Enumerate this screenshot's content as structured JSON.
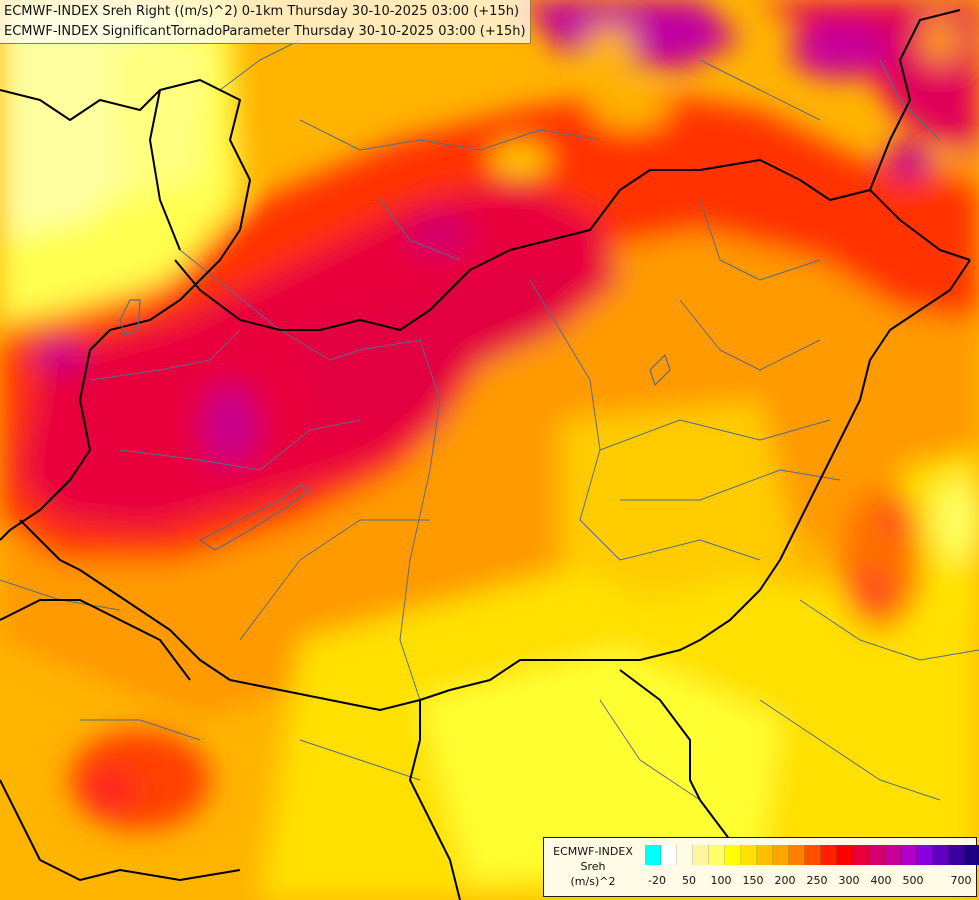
{
  "header": {
    "line1": "ECMWF-INDEX Sreh Right ((m/s)^2) 0-1km Thursday 30-10-2025 03:00 (+15h)",
    "line2": "ECMWF-INDEX SignificantTornadoParameter Thursday 30-10-2025 03:00 (+15h)"
  },
  "legend": {
    "source": "ECMWF-INDEX",
    "variable": "Sreh",
    "unit": "(m/s)^2",
    "colors": [
      "#00ffff",
      "#ffffff",
      "#fffbe0",
      "#fff5a0",
      "#ffff66",
      "#ffff00",
      "#ffe000",
      "#ffc000",
      "#ffa500",
      "#ff8000",
      "#ff5000",
      "#ff2000",
      "#ff0000",
      "#e8003c",
      "#d4006e",
      "#c8009a",
      "#b000c8",
      "#8800e0",
      "#6000c0",
      "#3c00a0",
      "#1a0080",
      "#00006a"
    ],
    "ticks": [
      "-20",
      "50",
      "100",
      "150",
      "200",
      "250",
      "300",
      "400",
      "500",
      "700"
    ]
  },
  "map": {
    "colors": {
      "yellow_pale": "#ffff80",
      "yellow": "#ffee00",
      "gold": "#ffc800",
      "orange": "#ffa500",
      "orange_dark": "#ff7a00",
      "red_orange": "#ff4500",
      "red": "#ff1a1a",
      "crimson": "#e8003c",
      "magenta": "#d4006e",
      "purple": "#c0009a",
      "border_national": "#000000",
      "border_regional": "#5a6a8a"
    }
  }
}
